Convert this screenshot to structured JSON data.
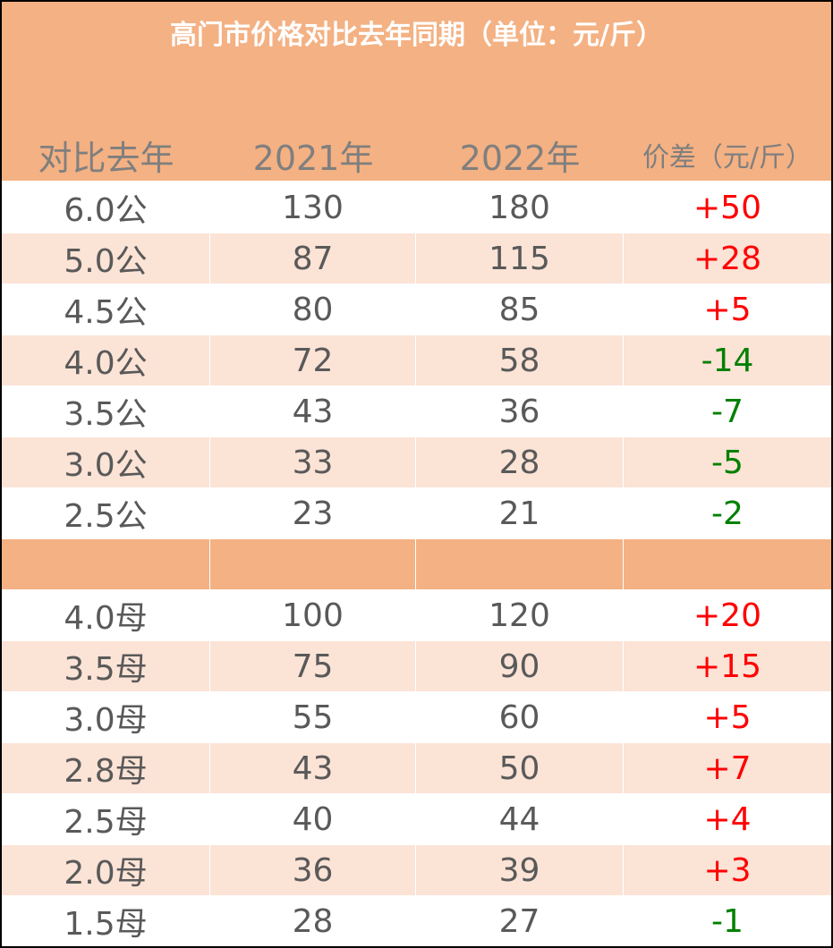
{
  "title": "高门市价格对比去年同期（单位：元/斤）",
  "headers": {
    "col0": "对比去年",
    "col1": "2021年",
    "col2": "2022年",
    "col3": "价差（元/斤）"
  },
  "colors": {
    "header_band": "#f4b183",
    "band_light": "#fbe3d6",
    "increase": "#ff0000",
    "decrease": "#008000",
    "text": "#595959"
  },
  "male_rows": [
    {
      "size": "6.0公",
      "y2021": "130",
      "y2022": "180",
      "diff": "+50",
      "trend": "up"
    },
    {
      "size": "5.0公",
      "y2021": "87",
      "y2022": "115",
      "diff": "+28",
      "trend": "up"
    },
    {
      "size": "4.5公",
      "y2021": "80",
      "y2022": "85",
      "diff": "+5",
      "trend": "up"
    },
    {
      "size": "4.0公",
      "y2021": "72",
      "y2022": "58",
      "diff": "-14",
      "trend": "down"
    },
    {
      "size": "3.5公",
      "y2021": "43",
      "y2022": "36",
      "diff": "-7",
      "trend": "down"
    },
    {
      "size": "3.0公",
      "y2021": "33",
      "y2022": "28",
      "diff": "-5",
      "trend": "down"
    },
    {
      "size": "2.5公",
      "y2021": "23",
      "y2022": "21",
      "diff": "-2",
      "trend": "down"
    }
  ],
  "female_rows": [
    {
      "size": "4.0母",
      "y2021": "100",
      "y2022": "120",
      "diff": "+20",
      "trend": "up"
    },
    {
      "size": "3.5母",
      "y2021": "75",
      "y2022": "90",
      "diff": "+15",
      "trend": "up"
    },
    {
      "size": "3.0母",
      "y2021": "55",
      "y2022": "60",
      "diff": "+5",
      "trend": "up"
    },
    {
      "size": "2.8母",
      "y2021": "43",
      "y2022": "50",
      "diff": "+7",
      "trend": "up"
    },
    {
      "size": "2.5母",
      "y2021": "40",
      "y2022": "44",
      "diff": "+4",
      "trend": "up"
    },
    {
      "size": "2.0母",
      "y2021": "36",
      "y2022": "39",
      "diff": "+3",
      "trend": "up"
    },
    {
      "size": "1.5母",
      "y2021": "28",
      "y2022": "27",
      "diff": "-1",
      "trend": "down"
    }
  ]
}
